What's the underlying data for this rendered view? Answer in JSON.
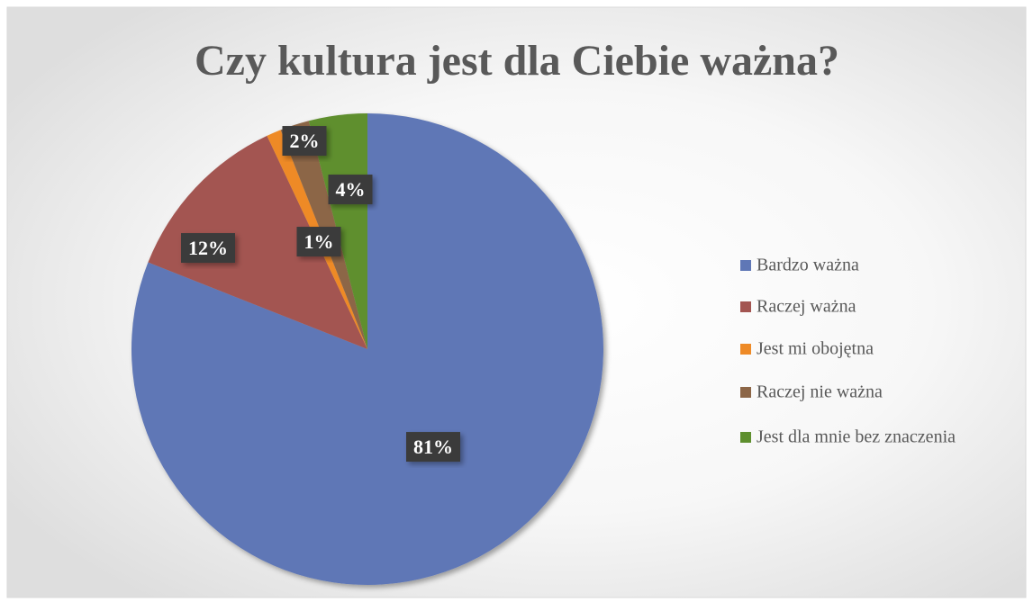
{
  "chart_data": {
    "type": "pie",
    "title": "Czy kultura jest dla Ciebie ważna?",
    "categories": [
      "Bardzo ważna",
      "Raczej ważna",
      "Jest mi obojętna",
      "Raczej nie ważna",
      "Jest dla mnie bez znaczenia"
    ],
    "values": [
      81,
      12,
      1,
      2,
      4
    ],
    "value_labels": [
      "81%",
      "12%",
      "1%",
      "2%",
      "4%"
    ],
    "colors": [
      "#5f77b6",
      "#a35551",
      "#ee8a27",
      "#8c6647",
      "#5e8f2e"
    ],
    "legend": "right"
  }
}
